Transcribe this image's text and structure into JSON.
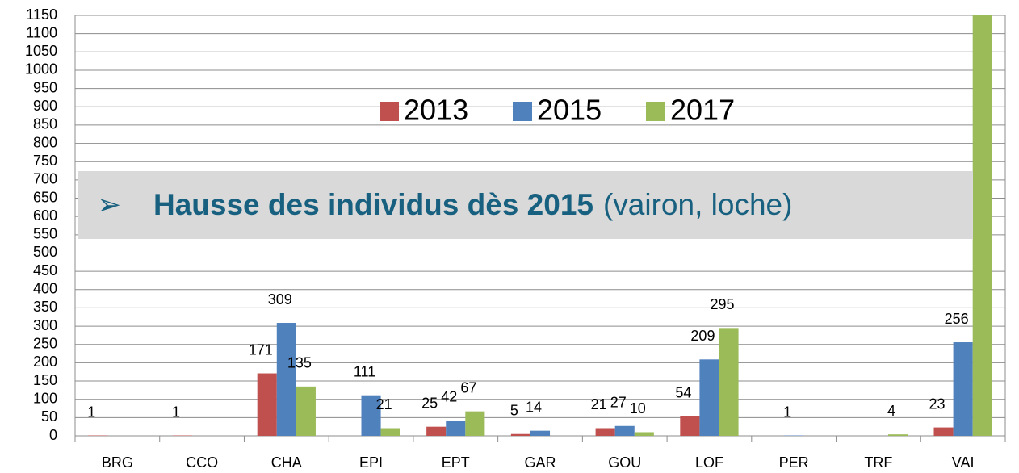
{
  "chart_data": {
    "type": "bar",
    "categories": [
      "BRG",
      "CCO",
      "CHA",
      "EPI",
      "EPT",
      "GAR",
      "GOU",
      "LOF",
      "PER",
      "TRF",
      "VAI"
    ],
    "series": [
      {
        "name": "2013",
        "color": "#c0504d",
        "values": [
          1,
          1,
          171,
          null,
          25,
          5,
          21,
          54,
          null,
          null,
          23
        ]
      },
      {
        "name": "2015",
        "color": "#4f81bd",
        "values": [
          null,
          null,
          309,
          111,
          42,
          14,
          27,
          209,
          1,
          null,
          256
        ]
      },
      {
        "name": "2017",
        "color": "#9bbb59",
        "values": [
          null,
          null,
          135,
          21,
          67,
          null,
          10,
          295,
          null,
          4,
          1160
        ]
      }
    ],
    "ylim": [
      0,
      1150
    ],
    "yticks": [
      0,
      50,
      100,
      150,
      200,
      250,
      300,
      350,
      400,
      450,
      500,
      550,
      600,
      650,
      700,
      750,
      800,
      850,
      900,
      950,
      1000,
      1050,
      1100,
      1150
    ],
    "grid": true,
    "legend": "top",
    "annotation": {
      "bullet": "➢",
      "bold": "Hausse des individus dès 2015",
      "normal": "(vairon, loche)"
    }
  }
}
